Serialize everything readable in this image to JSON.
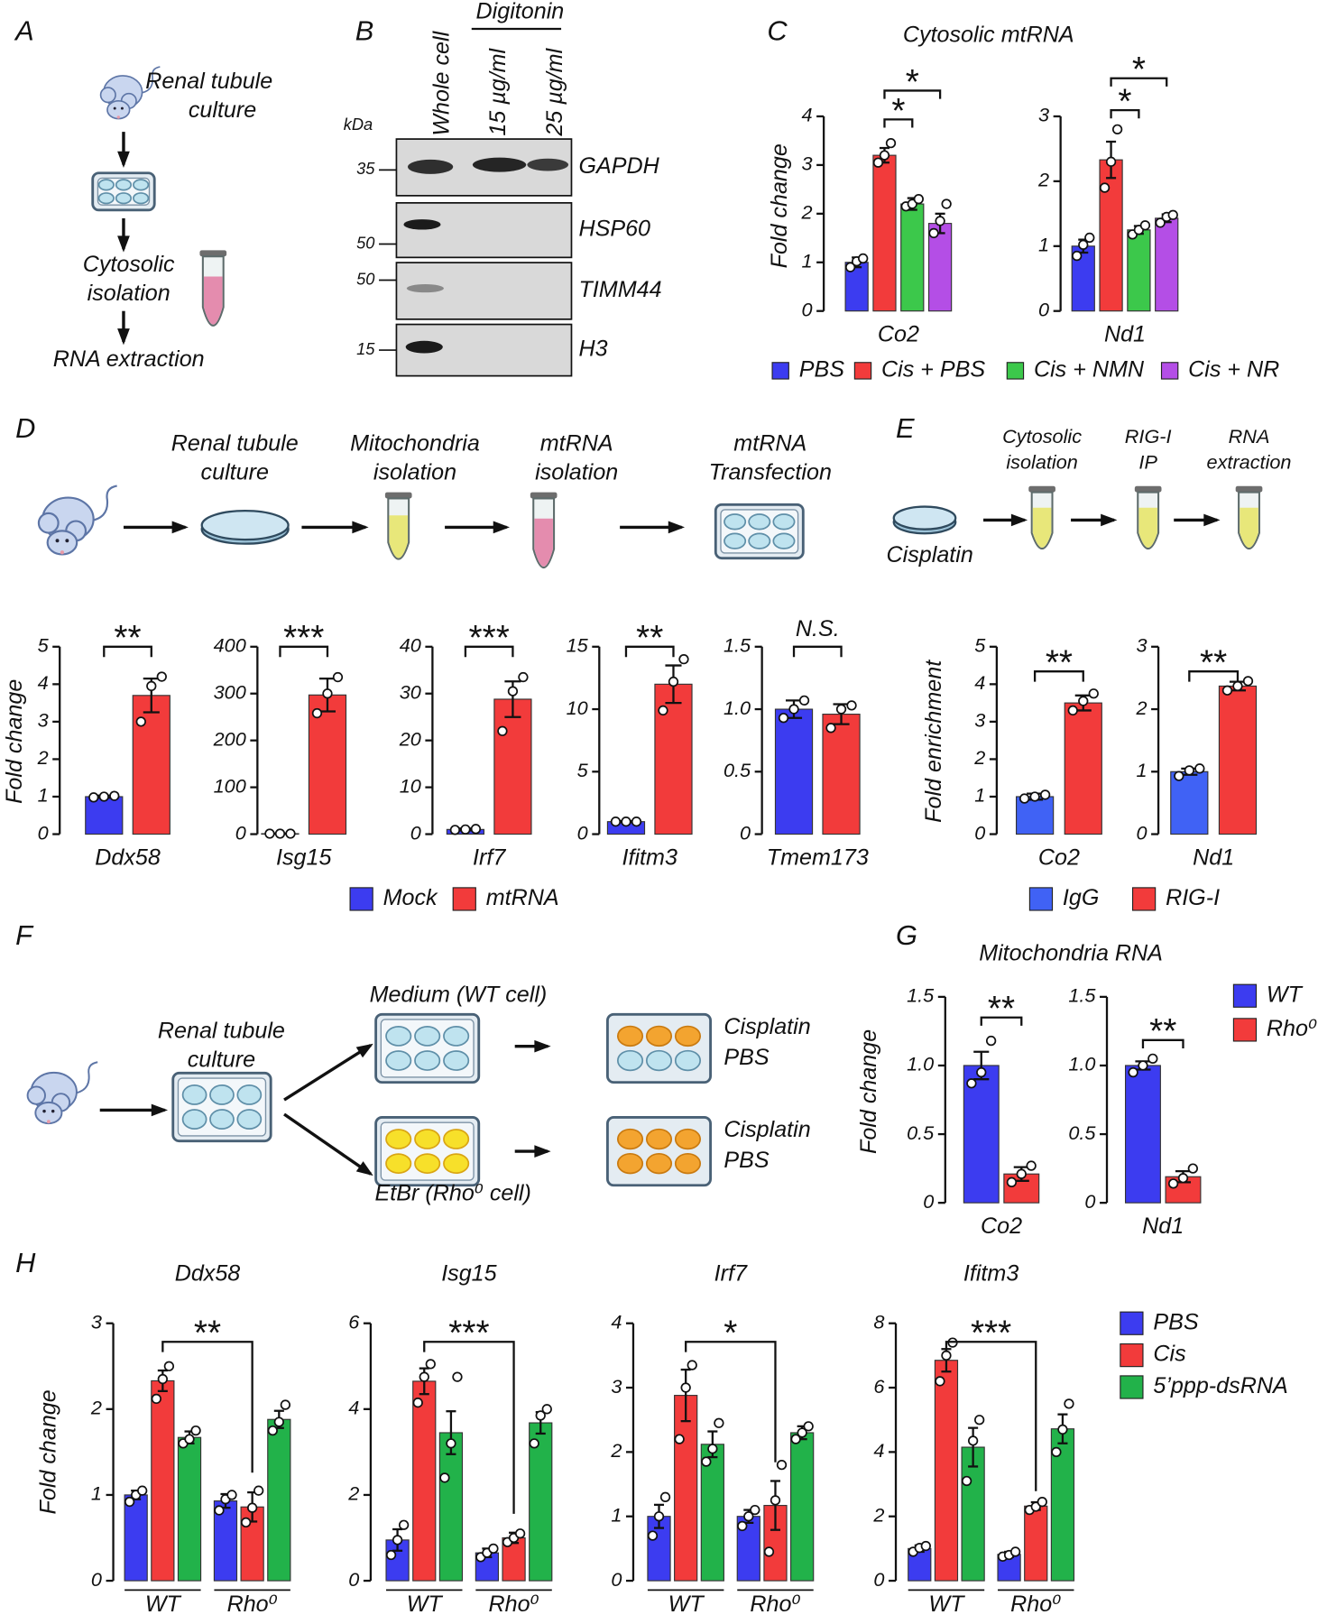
{
  "panel_labels": [
    "A",
    "B",
    "C",
    "D",
    "E",
    "F",
    "G",
    "H"
  ],
  "panel_a": {
    "steps": [
      [
        "Renal tubule",
        "culture"
      ],
      [
        "Cytosolic",
        "isolation"
      ],
      [
        "RNA extraction"
      ]
    ]
  },
  "panel_b": {
    "unit": "kDa",
    "treatment": "Digitonin",
    "lanes": [
      "Whole cell",
      "15 µg/ml",
      "25 µg/ml"
    ],
    "blots": [
      {
        "protein": "GAPDH",
        "marker": 35
      },
      {
        "protein": "HSP60",
        "marker": 50
      },
      {
        "protein": "TIMM44",
        "marker": 50
      },
      {
        "protein": "H3",
        "marker": 15
      }
    ]
  },
  "panel_d": {
    "steps": [
      [
        "Renal tubule",
        "culture"
      ],
      [
        "Mitochondria",
        "isolation"
      ],
      [
        "mtRNA",
        "isolation"
      ],
      [
        "mtRNA",
        "Transfection"
      ]
    ]
  },
  "panel_e": {
    "start": "Cisplatin",
    "steps": [
      [
        "Cytosolic",
        "isolation"
      ],
      [
        "RIG-I",
        "IP"
      ],
      [
        "RNA",
        "extraction"
      ]
    ]
  },
  "panel_f": {
    "source": [
      "Renal  tubule",
      "culture"
    ],
    "conditions": [
      {
        "medium": "Medium (WT cell)",
        "treatments": [
          "Cisplatin",
          "PBS"
        ]
      },
      {
        "medium": "EtBr (Rho⁰ cell)",
        "treatments": [
          "Cisplatin",
          "PBS"
        ]
      }
    ]
  },
  "chart_data": [
    {
      "type": "bar",
      "title": "Cytosolic mtRNA",
      "y_label": "Fold change",
      "series": [
        {
          "name": "PBS",
          "color": "#3c3cf0"
        },
        {
          "name": "Cis + PBS",
          "color": "#f23b3b"
        },
        {
          "name": "Cis + NMN",
          "color": "#3cc84b"
        },
        {
          "name": "Cis + NR",
          "color": "#b44ee6"
        }
      ],
      "subplots": [
        {
          "categories": [
            "Co2"
          ],
          "ylim": [
            0,
            4
          ],
          "yticks": [
            0,
            1,
            2,
            3,
            4
          ],
          "values": [
            [
              1.0
            ],
            [
              3.2
            ],
            [
              2.2
            ],
            [
              1.8
            ]
          ],
          "errors": [
            [
              0.1
            ],
            [
              0.15
            ],
            [
              0.12
            ],
            [
              0.2
            ]
          ],
          "points": [
            [
              [
                0.9,
                1.02,
                1.08
              ]
            ],
            [
              [
                3.05,
                3.2,
                3.45
              ]
            ],
            [
              [
                2.15,
                2.2,
                2.3
              ]
            ],
            [
              [
                1.6,
                1.85,
                2.2
              ]
            ]
          ],
          "annotations": [
            "*",
            "*"
          ]
        },
        {
          "categories": [
            "Nd1"
          ],
          "ylim": [
            0,
            3
          ],
          "yticks": [
            0,
            1,
            2,
            3
          ],
          "values": [
            [
              1.0
            ],
            [
              2.33
            ],
            [
              1.25
            ],
            [
              1.43
            ]
          ],
          "errors": [
            [
              0.1
            ],
            [
              0.28
            ],
            [
              0.06
            ],
            [
              0.06
            ]
          ],
          "points": [
            [
              [
                0.85,
                1.02,
                1.13
              ]
            ],
            [
              [
                1.9,
                2.3,
                2.8
              ]
            ],
            [
              [
                1.18,
                1.25,
                1.32
              ]
            ],
            [
              [
                1.36,
                1.45,
                1.48
              ]
            ]
          ],
          "annotations": [
            "*",
            "*"
          ]
        }
      ]
    },
    {
      "type": "bar",
      "y_label": "Fold change",
      "series": [
        {
          "name": "Mock",
          "color": "#3c3cf0"
        },
        {
          "name": "mtRNA",
          "color": "#f23b3b"
        }
      ],
      "subplots": [
        {
          "categories": [
            "Ddx58"
          ],
          "ylim": [
            0,
            5
          ],
          "yticks": [
            0,
            1,
            2,
            3,
            4,
            5
          ],
          "values": [
            [
              1.0
            ],
            [
              3.7
            ]
          ],
          "errors": [
            [
              0.03
            ],
            [
              0.45
            ]
          ],
          "points": [
            [
              [
                0.98,
                1.0,
                1.02
              ]
            ],
            [
              [
                3.0,
                3.95,
                4.2
              ]
            ]
          ],
          "annotations": [
            "**"
          ]
        },
        {
          "categories": [
            "Isg15"
          ],
          "ylim": [
            0,
            400
          ],
          "yticks": [
            0,
            100,
            200,
            300,
            400
          ],
          "values": [
            [
              1
            ],
            [
              297
            ]
          ],
          "errors": [
            [
              0.5
            ],
            [
              35
            ]
          ],
          "points": [
            [
              [
                1,
                1,
                1
              ]
            ],
            [
              [
                258,
                300,
                335
              ]
            ]
          ],
          "annotations": [
            "***"
          ]
        },
        {
          "categories": [
            "Irf7"
          ],
          "ylim": [
            0,
            40
          ],
          "yticks": [
            0,
            10,
            20,
            30,
            40
          ],
          "values": [
            [
              1
            ],
            [
              28.8
            ]
          ],
          "errors": [
            [
              0.2
            ],
            [
              3.8
            ]
          ],
          "points": [
            [
              [
                0.9,
                1,
                1.1
              ]
            ],
            [
              [
                22,
                30.5,
                33.5
              ]
            ]
          ],
          "annotations": [
            "***"
          ]
        },
        {
          "categories": [
            "Ifitm3"
          ],
          "ylim": [
            0,
            15
          ],
          "yticks": [
            0,
            5,
            10,
            15
          ],
          "values": [
            [
              1
            ],
            [
              12
            ]
          ],
          "errors": [
            [
              0.05
            ],
            [
              1.5
            ]
          ],
          "points": [
            [
              [
                1,
                1,
                1
              ]
            ],
            [
              [
                9.9,
                12.2,
                14
              ]
            ]
          ],
          "annotations": [
            "**"
          ]
        },
        {
          "categories": [
            "Tmem173"
          ],
          "ylim": [
            0,
            1.5
          ],
          "yticks": [
            0,
            0.5,
            {
              "value": 1,
              "label": "1.0"
            },
            1.5
          ],
          "values": [
            [
              1.0
            ],
            [
              0.96
            ]
          ],
          "errors": [
            [
              0.07
            ],
            [
              0.08
            ]
          ],
          "points": [
            [
              [
                0.93,
                1.0,
                1.07
              ]
            ],
            [
              [
                0.85,
                1.0,
                1.03
              ]
            ]
          ],
          "annotations": [
            "N.S."
          ]
        }
      ]
    },
    {
      "type": "bar",
      "y_label": "Fold enrichment",
      "series": [
        {
          "name": "IgG",
          "color": "#4062f5"
        },
        {
          "name": "RIG-I",
          "color": "#f23b3b"
        }
      ],
      "subplots": [
        {
          "categories": [
            "Co2"
          ],
          "ylim": [
            0,
            5
          ],
          "yticks": [
            0,
            1,
            2,
            3,
            4,
            5
          ],
          "values": [
            [
              1.0
            ],
            [
              3.5
            ]
          ],
          "errors": [
            [
              0.08
            ],
            [
              0.2
            ]
          ],
          "points": [
            [
              [
                0.95,
                1.0,
                1.05
              ]
            ],
            [
              [
                3.3,
                3.55,
                3.75
              ]
            ]
          ],
          "annotations": [
            "**"
          ]
        },
        {
          "categories": [
            "Nd1"
          ],
          "ylim": [
            0,
            3
          ],
          "yticks": [
            0,
            1,
            2,
            3
          ],
          "values": [
            [
              1.0
            ],
            [
              2.37
            ]
          ],
          "errors": [
            [
              0.05
            ],
            [
              0.07
            ]
          ],
          "points": [
            [
              [
                0.93,
                1.02,
                1.05
              ]
            ],
            [
              [
                2.3,
                2.37,
                2.45
              ]
            ]
          ],
          "annotations": [
            "**"
          ]
        }
      ]
    },
    {
      "type": "bar",
      "title": "Mitochondria RNA",
      "y_label": "Fold change",
      "series": [
        {
          "name": "WT",
          "color": "#3c3cf0"
        },
        {
          "name": "Rho⁰",
          "color": "#f23b3b"
        }
      ],
      "subplots": [
        {
          "categories": [
            "Co2"
          ],
          "ylim": [
            0,
            1.5
          ],
          "yticks": [
            0,
            0.5,
            {
              "value": 1,
              "label": "1.0"
            },
            1.5
          ],
          "values": [
            [
              1.0
            ],
            [
              0.21
            ]
          ],
          "errors": [
            [
              0.1
            ],
            [
              0.05
            ]
          ],
          "points": [
            [
              [
                0.87,
                0.95,
                1.18
              ]
            ],
            [
              [
                0.15,
                0.21,
                0.27
              ]
            ]
          ],
          "annotations": [
            "**"
          ]
        },
        {
          "categories": [
            "Nd1"
          ],
          "ylim": [
            0,
            1.5
          ],
          "yticks": [
            0,
            0.5,
            {
              "value": 1,
              "label": "1.0"
            },
            1.5
          ],
          "values": [
            [
              1.0
            ],
            [
              0.19
            ]
          ],
          "errors": [
            [
              0.03
            ],
            [
              0.04
            ]
          ],
          "points": [
            [
              [
                0.95,
                1.0,
                1.05
              ]
            ],
            [
              [
                0.14,
                0.18,
                0.25
              ]
            ]
          ],
          "annotations": [
            "**"
          ]
        }
      ]
    },
    {
      "type": "bar",
      "y_label": "Fold change",
      "series": [
        {
          "name": "PBS",
          "color": "#3c3cf0"
        },
        {
          "name": "Cis",
          "color": "#f23b3b"
        },
        {
          "name": "5’ppp-dsRNA",
          "color": "#22b24a"
        }
      ],
      "subplots": [
        {
          "title": "Ddx58",
          "categories": [
            "WT",
            "Rho⁰"
          ],
          "ylim": [
            0,
            3
          ],
          "yticks": [
            0,
            1,
            2,
            3
          ],
          "values": [
            [
              1.0,
              0.93
            ],
            [
              2.33,
              0.86
            ],
            [
              1.67,
              1.88
            ]
          ],
          "errors": [
            [
              0.05,
              0.08
            ],
            [
              0.12,
              0.17
            ],
            [
              0.07,
              0.1
            ]
          ],
          "points": [
            [
              [
                0.92,
                1.0,
                1.05
              ],
              [
                0.82,
                0.95,
                1.0
              ]
            ],
            [
              [
                2.12,
                2.35,
                2.5
              ],
              [
                0.68,
                0.85,
                1.05
              ]
            ],
            [
              [
                1.6,
                1.65,
                1.75
              ],
              [
                1.75,
                1.85,
                2.05
              ]
            ]
          ],
          "annotations": [
            "**"
          ]
        },
        {
          "title": "Isg15",
          "categories": [
            "WT",
            "Rho⁰"
          ],
          "ylim": [
            0,
            6
          ],
          "yticks": [
            0,
            2,
            4,
            6
          ],
          "values": [
            [
              0.95,
              0.65
            ],
            [
              4.65,
              1.0
            ],
            [
              3.45,
              3.68
            ]
          ],
          "errors": [
            [
              0.25,
              0.1
            ],
            [
              0.3,
              0.12
            ],
            [
              0.5,
              0.25
            ]
          ],
          "points": [
            [
              [
                0.6,
                0.95,
                1.3
              ],
              [
                0.55,
                0.65,
                0.75
              ]
            ],
            [
              [
                4.15,
                4.75,
                5.05
              ],
              [
                0.9,
                1.0,
                1.1
              ]
            ],
            [
              [
                2.4,
                3.2,
                4.75
              ],
              [
                3.2,
                3.85,
                4.0
              ]
            ]
          ],
          "annotations": [
            "***"
          ]
        },
        {
          "title": "Irf7",
          "categories": [
            "WT",
            "Rho⁰"
          ],
          "ylim": [
            0,
            4
          ],
          "yticks": [
            0,
            1,
            2,
            3,
            4
          ],
          "values": [
            [
              1.0,
              1.0
            ],
            [
              2.88,
              1.17
            ],
            [
              2.12,
              2.3
            ]
          ],
          "errors": [
            [
              0.18,
              0.1
            ],
            [
              0.4,
              0.38
            ],
            [
              0.2,
              0.1
            ]
          ],
          "points": [
            [
              [
                0.7,
                1.0,
                1.3
              ],
              [
                0.85,
                1.0,
                1.1
              ]
            ],
            [
              [
                2.2,
                3.0,
                3.35
              ],
              [
                0.45,
                1.25,
                1.8
              ]
            ],
            [
              [
                1.85,
                2.05,
                2.45
              ],
              [
                2.2,
                2.3,
                2.4
              ]
            ]
          ],
          "annotations": [
            "*"
          ]
        },
        {
          "title": "Ifitm3",
          "categories": [
            "WT",
            "Rho⁰"
          ],
          "ylim": [
            0,
            8
          ],
          "yticks": [
            0,
            2,
            4,
            6,
            8
          ],
          "values": [
            [
              1.0,
              0.82
            ],
            [
              6.85,
              2.32
            ],
            [
              4.15,
              4.72
            ]
          ],
          "errors": [
            [
              0.1,
              0.08
            ],
            [
              0.35,
              0.12
            ],
            [
              0.6,
              0.45
            ]
          ],
          "points": [
            [
              [
                0.9,
                1.02,
                1.08
              ],
              [
                0.75,
                0.8,
                0.9
              ]
            ],
            [
              [
                6.2,
                7.0,
                7.4
              ],
              [
                2.2,
                2.3,
                2.45
              ]
            ],
            [
              [
                3.1,
                4.35,
                5.0
              ],
              [
                4.0,
                4.7,
                5.5
              ]
            ]
          ],
          "annotations": [
            "***"
          ]
        }
      ]
    }
  ]
}
